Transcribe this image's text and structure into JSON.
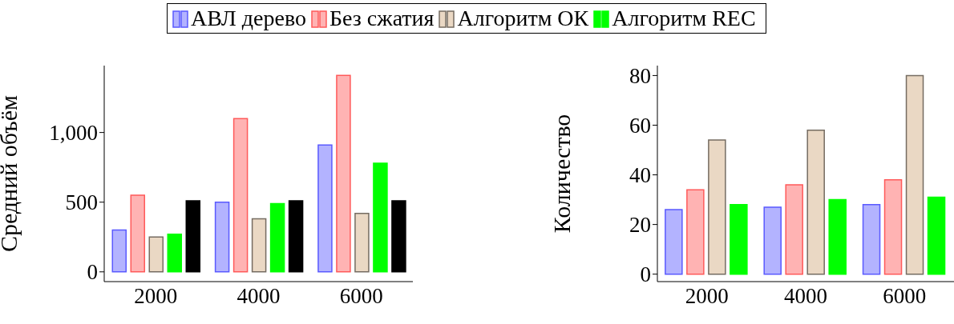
{
  "chart_data": [
    {
      "type": "bar",
      "ylabel": "Средний  объём",
      "categories": [
        "2000",
        "4000",
        "6000"
      ],
      "legend": "top",
      "ylim": [
        -70,
        1480
      ],
      "yticks": [
        0,
        500,
        {
          "value": 1000,
          "label": "1,000"
        }
      ],
      "series": [
        {
          "name": "АВЛ дерево",
          "color": "#b3b3ff",
          "values": [
            300,
            500,
            910
          ]
        },
        {
          "name": "Без сжатия",
          "color": "#ffb3b3",
          "values": [
            550,
            1100,
            1410
          ]
        },
        {
          "name": "Алгоритм ОК",
          "color": "#ead8c4",
          "values": [
            250,
            380,
            420
          ]
        },
        {
          "name": "Алгоритм REC",
          "color": "#00ff00",
          "values": [
            270,
            490,
            780
          ]
        },
        {
          "color": "#000000",
          "values": [
            510,
            510,
            510
          ]
        }
      ]
    },
    {
      "type": "bar",
      "ylabel": "Количество",
      "categories": [
        "2000",
        "4000",
        "6000"
      ],
      "ylim": [
        -3,
        84
      ],
      "yticks": [
        0,
        20,
        40,
        60,
        80
      ],
      "series": [
        {
          "color": "#b3b3ff",
          "values": [
            26,
            27,
            28
          ]
        },
        {
          "color": "#ffb3b3",
          "values": [
            34,
            36,
            38
          ]
        },
        {
          "color": "#ead8c4",
          "values": [
            54,
            58,
            80
          ]
        },
        {
          "color": "#00ff00",
          "values": [
            28,
            30,
            31
          ]
        }
      ]
    }
  ]
}
